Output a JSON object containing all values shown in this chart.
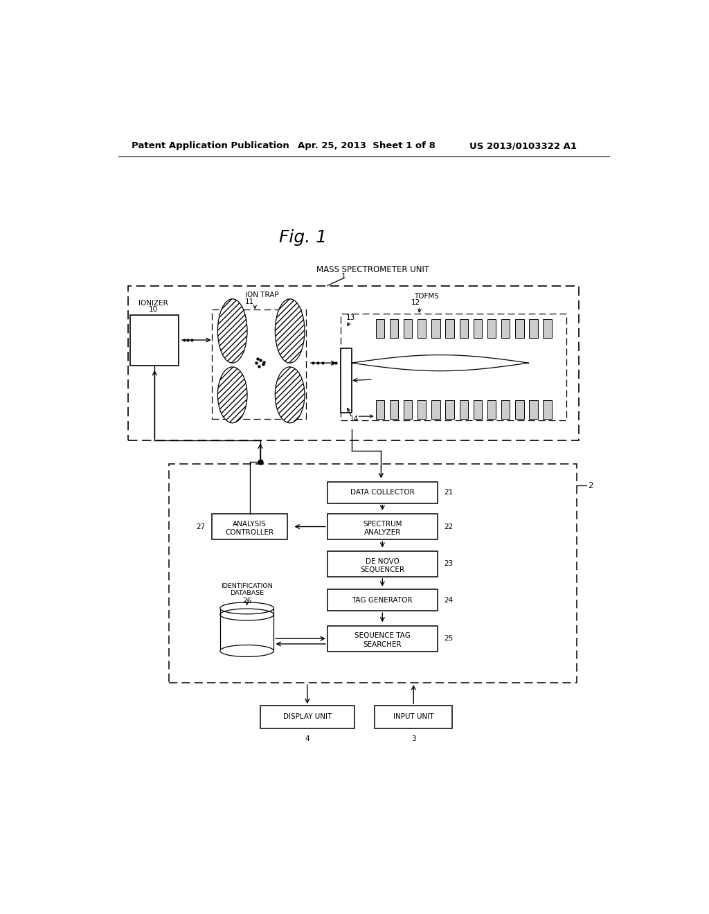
{
  "bg_color": "#ffffff",
  "header_left": "Patent Application Publication",
  "header_mid": "Apr. 25, 2013  Sheet 1 of 8",
  "header_right": "US 2013/0103322 A1",
  "fig_label": "Fig. 1"
}
